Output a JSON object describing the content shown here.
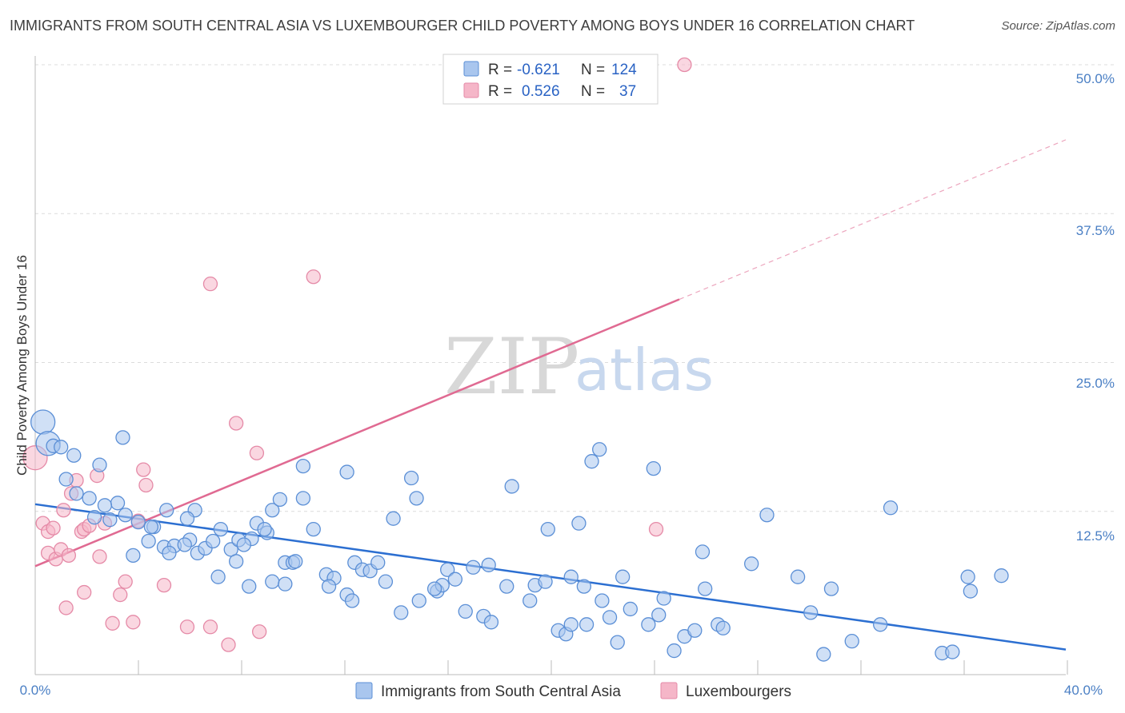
{
  "header": {
    "title": "IMMIGRANTS FROM SOUTH CENTRAL ASIA VS LUXEMBOURGER CHILD POVERTY AMONG BOYS UNDER 16 CORRELATION CHART",
    "source": "Source: ZipAtlas.com"
  },
  "watermark": {
    "zip": "ZIP",
    "atlas": "atlas"
  },
  "legend": {
    "rows": [
      {
        "r_label": "R =",
        "r_value": "-0.621",
        "n_label": "N =",
        "n_value": "124",
        "color": "#a9c6ee"
      },
      {
        "r_label": "R =",
        "r_value": "0.526",
        "n_label": "N =",
        "n_value": "37",
        "color": "#f5b6c8"
      }
    ]
  },
  "bottom_legend": {
    "items": [
      {
        "label": "Immigrants from South Central Asia",
        "color": "#a9c6ee"
      },
      {
        "label": "Luxembourgers",
        "color": "#f5b6c8"
      }
    ]
  },
  "colors": {
    "blue_fill": "#a9c6ee",
    "blue_stroke": "#5b8fd6",
    "blue_line": "#2c6fd1",
    "pink_fill": "#f5b6c8",
    "pink_stroke": "#e58aa7",
    "pink_line": "#e06a92",
    "axis_text": "#4a7fc4",
    "grid": "#dcdcdc"
  },
  "chart_data": {
    "type": "scatter",
    "title": "IMMIGRANTS FROM SOUTH CENTRAL ASIA VS LUXEMBOURGER CHILD POVERTY AMONG BOYS UNDER 16 CORRELATION CHART",
    "xlabel": "",
    "ylabel": "Child Poverty Among Boys Under 16",
    "xlim": [
      0,
      40
    ],
    "ylim": [
      0,
      50
    ],
    "y_ticks": [
      "12.5%",
      "25.0%",
      "37.5%",
      "50.0%"
    ],
    "y_tick_values": [
      12.5,
      25,
      37.5,
      50
    ],
    "x_tick_labels": [
      "0.0%",
      "40.0%"
    ],
    "grid": true,
    "series": [
      {
        "name": "Immigrants from South Central Asia",
        "R": -0.621,
        "N": 124,
        "trend": {
          "x": [
            0,
            40
          ],
          "y": [
            13.1,
            0.9
          ]
        },
        "points": [
          [
            0.3,
            20.0,
            2
          ],
          [
            0.5,
            18.2,
            2
          ],
          [
            0.7,
            18.0,
            1
          ],
          [
            1.0,
            17.9,
            1
          ],
          [
            1.5,
            17.2,
            1
          ],
          [
            2.5,
            16.4,
            1
          ],
          [
            3.4,
            18.7,
            1
          ],
          [
            1.2,
            15.2,
            1
          ],
          [
            1.6,
            14.0,
            1
          ],
          [
            2.1,
            13.6,
            1
          ],
          [
            3.2,
            13.2,
            1
          ],
          [
            2.7,
            13.0,
            1
          ],
          [
            2.3,
            12.0,
            1
          ],
          [
            2.9,
            11.8,
            1
          ],
          [
            3.5,
            12.2,
            1
          ],
          [
            4.0,
            11.6,
            1
          ],
          [
            4.6,
            11.2,
            1
          ],
          [
            4.4,
            10.0,
            1
          ],
          [
            5.0,
            9.5,
            1
          ],
          [
            5.4,
            9.6,
            1
          ],
          [
            6.0,
            10.1,
            1
          ],
          [
            4.5,
            11.2,
            1
          ],
          [
            5.2,
            9.0,
            1
          ],
          [
            6.3,
            9.0,
            1
          ],
          [
            6.6,
            9.4,
            1
          ],
          [
            6.9,
            10.0,
            1
          ],
          [
            7.2,
            11.0,
            1
          ],
          [
            7.6,
            9.3,
            1
          ],
          [
            7.9,
            10.1,
            1
          ],
          [
            8.4,
            10.2,
            1
          ],
          [
            8.6,
            11.5,
            1
          ],
          [
            9.2,
            12.6,
            1
          ],
          [
            9.5,
            13.5,
            1
          ],
          [
            3.8,
            8.8,
            1
          ],
          [
            5.1,
            12.6,
            1
          ],
          [
            6.2,
            12.6,
            1
          ],
          [
            5.9,
            11.9,
            1
          ],
          [
            8.1,
            9.7,
            1
          ],
          [
            7.8,
            8.3,
            1
          ],
          [
            7.1,
            7.0,
            1
          ],
          [
            8.3,
            6.2,
            1
          ],
          [
            9.2,
            6.6,
            1
          ],
          [
            9.7,
            8.2,
            1
          ],
          [
            10.0,
            8.2,
            1
          ],
          [
            10.1,
            8.3,
            1
          ],
          [
            9.7,
            6.4,
            1
          ],
          [
            10.4,
            13.6,
            1
          ],
          [
            10.8,
            11.0,
            1
          ],
          [
            11.3,
            7.2,
            1
          ],
          [
            11.6,
            6.9,
            1
          ],
          [
            12.4,
            8.2,
            1
          ],
          [
            12.7,
            7.6,
            1
          ],
          [
            13.0,
            7.5,
            1
          ],
          [
            13.3,
            8.2,
            1
          ],
          [
            13.6,
            6.6,
            1
          ],
          [
            11.4,
            6.2,
            1
          ],
          [
            12.1,
            5.5,
            1
          ],
          [
            12.3,
            5.0,
            1
          ],
          [
            13.9,
            11.9,
            1
          ],
          [
            14.6,
            15.3,
            1
          ],
          [
            14.8,
            13.6,
            1
          ],
          [
            14.2,
            4.0,
            1
          ],
          [
            14.9,
            5.0,
            1
          ],
          [
            15.6,
            5.8,
            1
          ],
          [
            15.8,
            6.3,
            1
          ],
          [
            16.0,
            7.6,
            1
          ],
          [
            16.3,
            6.8,
            1
          ],
          [
            17.0,
            7.8,
            1
          ],
          [
            17.6,
            8.0,
            1
          ],
          [
            16.7,
            4.1,
            1
          ],
          [
            17.4,
            3.7,
            1
          ],
          [
            17.7,
            3.2,
            1
          ],
          [
            18.3,
            6.2,
            1
          ],
          [
            18.5,
            14.6,
            1
          ],
          [
            19.2,
            5.0,
            1
          ],
          [
            19.4,
            6.3,
            1
          ],
          [
            19.8,
            6.6,
            1
          ],
          [
            20.3,
            2.5,
            1
          ],
          [
            20.6,
            2.2,
            1
          ],
          [
            19.9,
            11.0,
            1
          ],
          [
            20.8,
            7.0,
            1
          ],
          [
            21.1,
            11.5,
            1
          ],
          [
            21.3,
            6.2,
            1
          ],
          [
            21.6,
            16.7,
            1
          ],
          [
            21.9,
            17.7,
            1
          ],
          [
            22.0,
            5.0,
            1
          ],
          [
            22.3,
            3.6,
            1
          ],
          [
            21.4,
            3.0,
            1
          ],
          [
            22.8,
            7.0,
            1
          ],
          [
            22.6,
            1.5,
            1
          ],
          [
            23.1,
            4.3,
            1
          ],
          [
            23.8,
            3.0,
            1
          ],
          [
            24.0,
            16.1,
            1
          ],
          [
            24.2,
            3.8,
            1
          ],
          [
            24.4,
            5.2,
            1
          ],
          [
            24.8,
            0.8,
            1
          ],
          [
            25.2,
            2.0,
            1
          ],
          [
            25.6,
            2.5,
            1
          ],
          [
            25.9,
            9.1,
            1
          ],
          [
            26.0,
            6.0,
            1
          ],
          [
            26.5,
            3.0,
            1
          ],
          [
            26.7,
            2.7,
            1
          ],
          [
            12.1,
            15.8,
            1
          ],
          [
            9.0,
            10.7,
            1
          ],
          [
            27.8,
            8.1,
            1
          ],
          [
            28.4,
            12.2,
            1
          ],
          [
            29.6,
            7.0,
            1
          ],
          [
            30.1,
            4.0,
            1
          ],
          [
            30.6,
            0.5,
            1
          ],
          [
            30.9,
            6.0,
            1
          ],
          [
            31.7,
            1.6,
            1
          ],
          [
            32.8,
            3.0,
            1
          ],
          [
            33.2,
            12.8,
            1
          ],
          [
            35.2,
            0.6,
            1
          ],
          [
            35.6,
            0.7,
            1
          ],
          [
            36.2,
            7.0,
            1
          ],
          [
            36.3,
            5.8,
            1
          ],
          [
            37.5,
            7.1,
            1
          ],
          [
            10.4,
            16.3,
            1
          ],
          [
            5.8,
            9.7,
            1
          ],
          [
            8.9,
            11.0,
            1
          ],
          [
            15.5,
            6.0,
            1
          ],
          [
            20.8,
            3.0,
            1
          ]
        ]
      },
      {
        "name": "Luxembourgers",
        "R": 0.526,
        "N": 37,
        "trend": {
          "x": [
            0,
            25
          ],
          "y": [
            7.9,
            30.3
          ]
        },
        "trend_extension": {
          "x": [
            25,
            40
          ],
          "y": [
            30.3,
            43.7
          ]
        },
        "points": [
          [
            0.0,
            17.0,
            2
          ],
          [
            0.3,
            11.5,
            1
          ],
          [
            0.5,
            10.8,
            1
          ],
          [
            0.7,
            11.1,
            1
          ],
          [
            0.5,
            9.0,
            1
          ],
          [
            0.8,
            8.5,
            1
          ],
          [
            1.0,
            9.3,
            1
          ],
          [
            1.1,
            12.6,
            1
          ],
          [
            1.3,
            8.8,
            1
          ],
          [
            1.4,
            14.0,
            1
          ],
          [
            1.6,
            15.1,
            1
          ],
          [
            1.8,
            10.8,
            1
          ],
          [
            1.9,
            11.0,
            1
          ],
          [
            2.1,
            11.3,
            1
          ],
          [
            2.5,
            8.7,
            1
          ],
          [
            2.4,
            15.5,
            1
          ],
          [
            2.7,
            11.5,
            1
          ],
          [
            1.2,
            4.4,
            1
          ],
          [
            1.9,
            5.7,
            1
          ],
          [
            3.0,
            3.1,
            1
          ],
          [
            3.3,
            5.5,
            1
          ],
          [
            3.5,
            6.6,
            1
          ],
          [
            3.8,
            3.2,
            1
          ],
          [
            4.2,
            16.0,
            1
          ],
          [
            4.3,
            14.7,
            1
          ],
          [
            4.0,
            11.7,
            1
          ],
          [
            5.0,
            6.3,
            1
          ],
          [
            5.9,
            2.8,
            1
          ],
          [
            6.8,
            2.8,
            1
          ],
          [
            7.5,
            1.3,
            1
          ],
          [
            6.8,
            31.6,
            1
          ],
          [
            7.8,
            19.9,
            1
          ],
          [
            8.6,
            17.4,
            1
          ],
          [
            8.7,
            2.4,
            1
          ],
          [
            10.8,
            32.2,
            1
          ],
          [
            24.1,
            11.0,
            1
          ],
          [
            25.2,
            50.0,
            1
          ]
        ]
      }
    ]
  }
}
